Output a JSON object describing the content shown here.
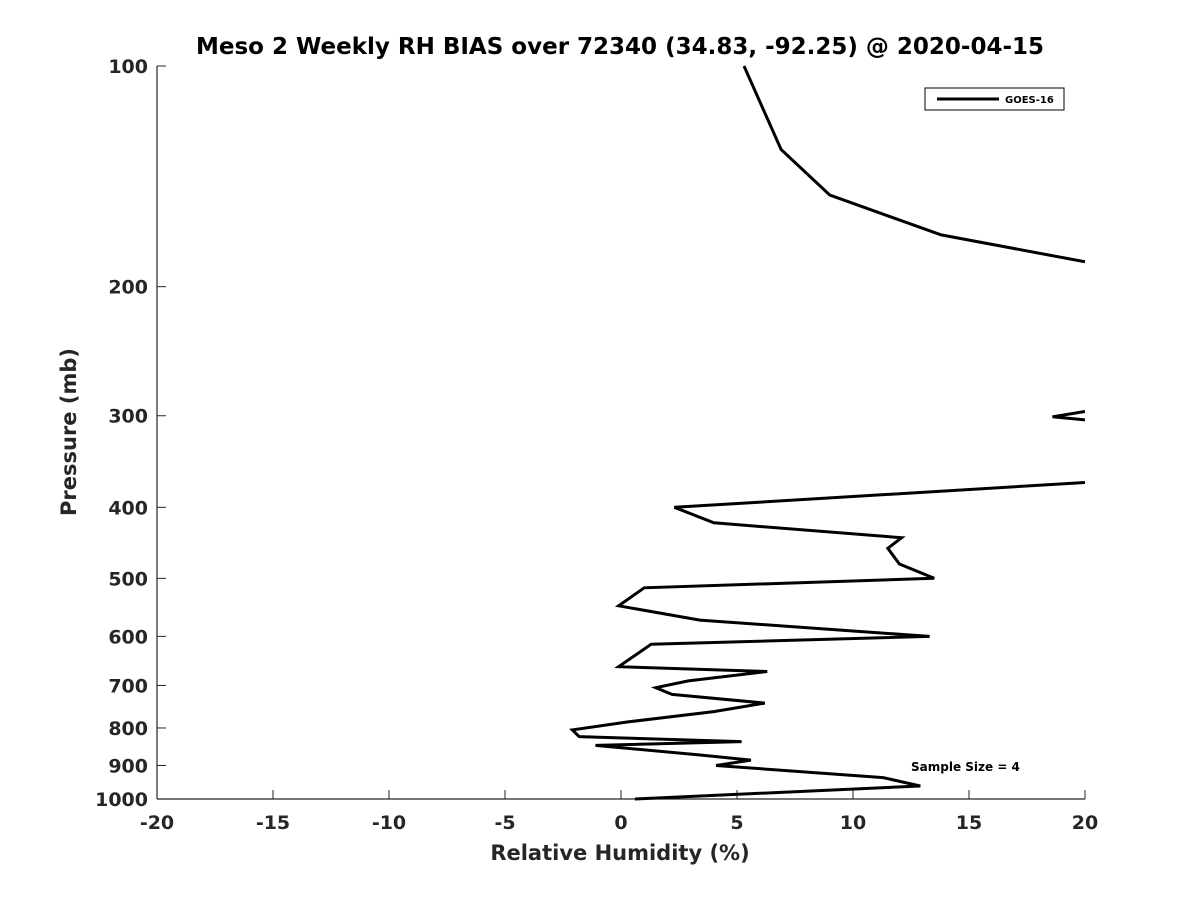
{
  "chart_data": {
    "type": "line",
    "title": "Meso 2 Weekly RH BIAS over 72340 (34.83, -92.25) @ 2020-04-15",
    "xlabel": "Relative Humidity (%)",
    "ylabel": "Pressure (mb)",
    "xlim": [
      -20,
      20
    ],
    "ylim": [
      100,
      1000
    ],
    "y_scale": "log",
    "y_direction": "reversed",
    "x_ticks": [
      "-20",
      "-15",
      "-10",
      "-5",
      "0",
      "5",
      "10",
      "15",
      "20"
    ],
    "y_ticks": [
      "100",
      "200",
      "300",
      "400",
      "500",
      "600",
      "700",
      "800",
      "900",
      "1000"
    ],
    "grid": false,
    "legend_position": "top-right",
    "annotation": "Sample Size = 4",
    "series": [
      {
        "name": "GOES-16",
        "color": "#000000",
        "segments": [
          [
            [
              5.3,
              100
            ],
            [
              6.9,
              130
            ],
            [
              9.0,
              150
            ],
            [
              13.8,
              170
            ],
            [
              20.0,
              185
            ]
          ],
          [
            [
              20.0,
              296
            ],
            [
              18.6,
              301
            ],
            [
              20.0,
              304
            ]
          ],
          [
            [
              20.0,
              370
            ],
            [
              2.3,
              400
            ],
            [
              4.0,
              420
            ],
            [
              12.1,
              440
            ],
            [
              11.5,
              455
            ],
            [
              12.0,
              478
            ],
            [
              13.5,
              500
            ],
            [
              1.0,
              515
            ],
            [
              -0.1,
              545
            ],
            [
              3.4,
              570
            ],
            [
              10.0,
              590
            ],
            [
              13.3,
              600
            ],
            [
              1.3,
              615
            ],
            [
              -0.1,
              660
            ],
            [
              6.3,
              670
            ],
            [
              2.9,
              690
            ],
            [
              1.5,
              705
            ],
            [
              2.2,
              720
            ],
            [
              6.2,
              740
            ],
            [
              4.0,
              760
            ],
            [
              0.3,
              785
            ],
            [
              -2.1,
              805
            ],
            [
              -1.8,
              822
            ],
            [
              5.2,
              835
            ],
            [
              -1.1,
              845
            ],
            [
              3.3,
              870
            ],
            [
              5.6,
              885
            ],
            [
              4.1,
              900
            ],
            [
              11.3,
              935
            ],
            [
              12.9,
              960
            ],
            [
              0.6,
              1000
            ]
          ]
        ]
      }
    ]
  }
}
